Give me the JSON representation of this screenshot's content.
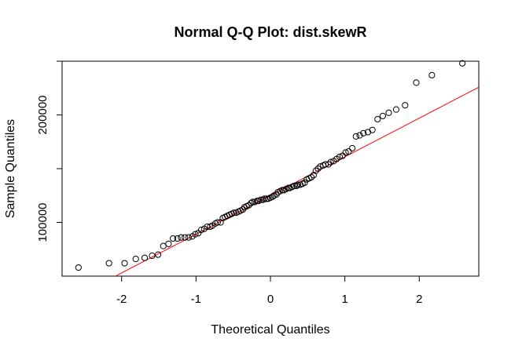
{
  "chart_data": {
    "type": "scatter",
    "title": "Normal Q-Q Plot: dist.skewR",
    "xlabel": "Theoretical Quantiles",
    "ylabel": "Sample Quantiles",
    "xlim": [
      -2.8,
      2.8
    ],
    "ylim": [
      50000,
      250000
    ],
    "x_ticks": [
      -2,
      -1,
      0,
      1,
      2
    ],
    "y_ticks": [
      100000,
      200000
    ],
    "y_minor_ticks": [
      150000,
      250000
    ],
    "grid": false,
    "legend": "none",
    "reference_line": {
      "color": "#ff0000",
      "intercept": 125000,
      "slope": 36000
    },
    "series": [
      {
        "marker": "open-circle",
        "color": "#000000",
        "points": [
          [
            -2.58,
            58000
          ],
          [
            -2.17,
            62000
          ],
          [
            -1.96,
            62000
          ],
          [
            -1.81,
            66000
          ],
          [
            -1.69,
            67000
          ],
          [
            -1.59,
            69000
          ],
          [
            -1.51,
            70000
          ],
          [
            -1.44,
            78000
          ],
          [
            -1.37,
            80000
          ],
          [
            -1.31,
            85000
          ],
          [
            -1.25,
            85000
          ],
          [
            -1.2,
            86000
          ],
          [
            -1.15,
            86000
          ],
          [
            -1.1,
            86000
          ],
          [
            -1.05,
            87000
          ],
          [
            -1.01,
            89000
          ],
          [
            -0.97,
            90000
          ],
          [
            -0.93,
            93000
          ],
          [
            -0.89,
            94000
          ],
          [
            -0.85,
            96000
          ],
          [
            -0.81,
            96000
          ],
          [
            -0.78,
            97000
          ],
          [
            -0.74,
            99000
          ],
          [
            -0.71,
            100000
          ],
          [
            -0.67,
            100000
          ],
          [
            -0.64,
            104000
          ],
          [
            -0.61,
            105000
          ],
          [
            -0.58,
            106000
          ],
          [
            -0.55,
            107000
          ],
          [
            -0.52,
            108000
          ],
          [
            -0.49,
            109000
          ],
          [
            -0.46,
            109000
          ],
          [
            -0.43,
            110000
          ],
          [
            -0.4,
            111000
          ],
          [
            -0.37,
            112000
          ],
          [
            -0.35,
            114000
          ],
          [
            -0.32,
            115000
          ],
          [
            -0.29,
            116000
          ],
          [
            -0.26,
            118000
          ],
          [
            -0.24,
            119000
          ],
          [
            -0.21,
            119000
          ],
          [
            -0.18,
            120000
          ],
          [
            -0.16,
            120000
          ],
          [
            -0.13,
            121000
          ],
          [
            -0.1,
            121000
          ],
          [
            -0.08,
            122000
          ],
          [
            -0.05,
            122000
          ],
          [
            -0.03,
            122000
          ],
          [
            0.0,
            123000
          ],
          [
            0.03,
            124000
          ],
          [
            0.05,
            125000
          ],
          [
            0.08,
            126000
          ],
          [
            0.1,
            128000
          ],
          [
            0.13,
            129000
          ],
          [
            0.16,
            130000
          ],
          [
            0.18,
            130000
          ],
          [
            0.21,
            131000
          ],
          [
            0.24,
            132000
          ],
          [
            0.26,
            132000
          ],
          [
            0.29,
            133000
          ],
          [
            0.32,
            134000
          ],
          [
            0.35,
            134000
          ],
          [
            0.37,
            135000
          ],
          [
            0.4,
            135000
          ],
          [
            0.43,
            136000
          ],
          [
            0.46,
            137000
          ],
          [
            0.49,
            140000
          ],
          [
            0.52,
            141000
          ],
          [
            0.55,
            142000
          ],
          [
            0.58,
            144000
          ],
          [
            0.61,
            148000
          ],
          [
            0.64,
            150000
          ],
          [
            0.67,
            152000
          ],
          [
            0.71,
            153000
          ],
          [
            0.74,
            154000
          ],
          [
            0.78,
            154000
          ],
          [
            0.81,
            156000
          ],
          [
            0.85,
            157000
          ],
          [
            0.89,
            159000
          ],
          [
            0.93,
            161000
          ],
          [
            0.97,
            162000
          ],
          [
            1.01,
            165000
          ],
          [
            1.05,
            166000
          ],
          [
            1.1,
            169000
          ],
          [
            1.15,
            180000
          ],
          [
            1.2,
            181000
          ],
          [
            1.25,
            183000
          ],
          [
            1.31,
            184000
          ],
          [
            1.37,
            186000
          ],
          [
            1.44,
            196000
          ],
          [
            1.51,
            199000
          ],
          [
            1.59,
            202000
          ],
          [
            1.69,
            205000
          ],
          [
            1.81,
            209000
          ],
          [
            1.96,
            230000
          ],
          [
            2.17,
            237000
          ],
          [
            2.58,
            248000
          ]
        ]
      }
    ]
  }
}
